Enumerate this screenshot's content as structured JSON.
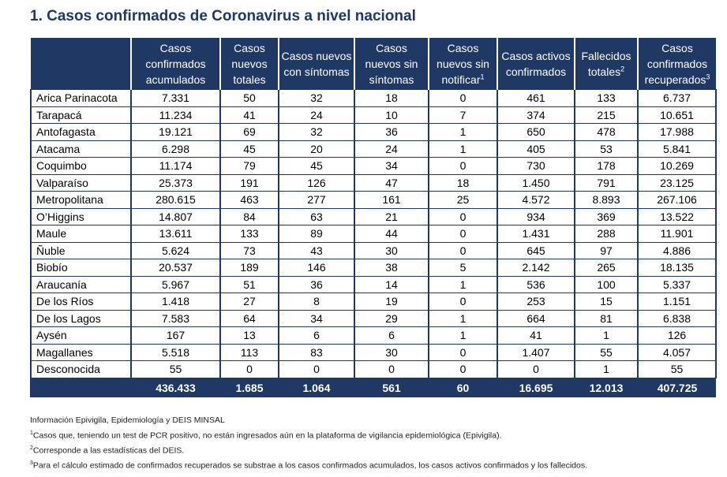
{
  "title": "1. Casos confirmados de Coronavirus a nivel nacional",
  "headers": [
    {
      "text": "",
      "sup": ""
    },
    {
      "text": "Casos confirmados acumulados",
      "sup": ""
    },
    {
      "text": "Casos nuevos totales",
      "sup": ""
    },
    {
      "text": "Casos nuevos con síntomas",
      "sup": ""
    },
    {
      "text": "Casos nuevos sin síntomas",
      "sup": ""
    },
    {
      "text": "Casos nuevos sin notificar",
      "sup": "1"
    },
    {
      "text": "Casos activos confirmados",
      "sup": ""
    },
    {
      "text": "Fallecidos totales",
      "sup": "2"
    },
    {
      "text": "Casos confirmados recuperados",
      "sup": "3"
    }
  ],
  "rows": [
    [
      "Arica Parinacota",
      "7.331",
      "50",
      "32",
      "18",
      "0",
      "461",
      "133",
      "6.737"
    ],
    [
      "Tarapacá",
      "11.234",
      "41",
      "24",
      "10",
      "7",
      "374",
      "215",
      "10.651"
    ],
    [
      "Antofagasta",
      "19.121",
      "69",
      "32",
      "36",
      "1",
      "650",
      "478",
      "17.988"
    ],
    [
      "Atacama",
      "6.298",
      "45",
      "20",
      "24",
      "1",
      "405",
      "53",
      "5.841"
    ],
    [
      "Coquimbo",
      "11.174",
      "79",
      "45",
      "34",
      "0",
      "730",
      "178",
      "10.269"
    ],
    [
      "Valparaíso",
      "25.373",
      "191",
      "126",
      "47",
      "18",
      "1.450",
      "791",
      "23.125"
    ],
    [
      "Metropolitana",
      "280.615",
      "463",
      "277",
      "161",
      "25",
      "4.572",
      "8.893",
      "267.106"
    ],
    [
      "O’Higgins",
      "14.807",
      "84",
      "63",
      "21",
      "0",
      "934",
      "369",
      "13.522"
    ],
    [
      "Maule",
      "13.611",
      "133",
      "89",
      "44",
      "0",
      "1.431",
      "288",
      "11.901"
    ],
    [
      "Ñuble",
      "5.624",
      "73",
      "43",
      "30",
      "0",
      "645",
      "97",
      "4.886"
    ],
    [
      "Biobío",
      "20.537",
      "189",
      "146",
      "38",
      "5",
      "2.142",
      "265",
      "18.135"
    ],
    [
      "Araucanía",
      "5.967",
      "51",
      "36",
      "14",
      "1",
      "536",
      "100",
      "5.337"
    ],
    [
      "De los Ríos",
      "1.418",
      "27",
      "8",
      "19",
      "0",
      "253",
      "15",
      "1.151"
    ],
    [
      "De los Lagos",
      "7.583",
      "64",
      "34",
      "29",
      "1",
      "664",
      "81",
      "6.838"
    ],
    [
      "Aysén",
      "167",
      "13",
      "6",
      "6",
      "1",
      "41",
      "1",
      "126"
    ],
    [
      "Magallanes",
      "5.518",
      "113",
      "83",
      "30",
      "0",
      "1.407",
      "55",
      "4.057"
    ],
    [
      "Desconocida",
      "55",
      "0",
      "0",
      "0",
      "0",
      "0",
      "1",
      "55"
    ]
  ],
  "totals": [
    "",
    "436.433",
    "1.685",
    "1.064",
    "561",
    "60",
    "16.695",
    "12.013",
    "407.725"
  ],
  "notes": {
    "source": "Información Epivigila, Epidemiología y DEIS MINSAL",
    "note1": "Casos que, teniendo un test de PCR positivo, no están ingresados aún en la plataforma de vigilancia epidemiológica (Epivigila).",
    "note2": "Corresponde a las estadísticas del DEIS.",
    "note3": "Para el cálculo estimado de confirmados recuperados se substrae a los casos confirmados acumulados, los casos activos confirmados y los fallecidos."
  }
}
